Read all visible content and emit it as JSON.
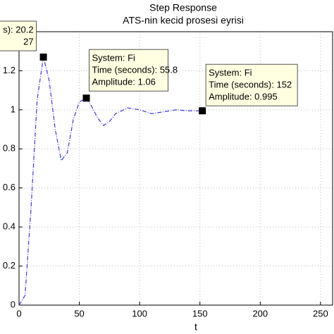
{
  "chart_data": {
    "type": "line",
    "title": "Step Response",
    "subtitle": "ATS-nin kecid prosesi eyrisi",
    "x_label": "t",
    "x": [
      0,
      5,
      10,
      15,
      20.2,
      25,
      30,
      35,
      40,
      45,
      50,
      55.8,
      60,
      65,
      70,
      75,
      80,
      90,
      100,
      110,
      120,
      130,
      140,
      152
    ],
    "series": [
      {
        "name": "Fi",
        "color": "#3b3bd6",
        "values": [
          0,
          0.05,
          0.5,
          1.05,
          1.27,
          1.15,
          0.9,
          0.74,
          0.78,
          0.95,
          1.04,
          1.06,
          1.02,
          0.96,
          0.92,
          0.94,
          0.98,
          1.01,
          1.0,
          0.98,
          0.99,
          1.0,
          0.995,
          0.995
        ]
      }
    ],
    "xlim": [
      0,
      260
    ],
    "xticks": [
      0,
      50,
      100,
      150,
      200,
      250
    ],
    "ylim": [
      0,
      1.4
    ],
    "yticks": [
      0,
      0.2,
      0.4,
      0.6,
      0.8,
      1,
      1.2
    ],
    "grid": true,
    "datatips": [
      {
        "x": 20.2,
        "y": 1.27,
        "lines": [
          "s): 20.2",
          "27"
        ]
      },
      {
        "x": 55.8,
        "y": 1.06,
        "lines": [
          "System: Fi",
          "Time (seconds): 55.8",
          "Amplitude: 1.06"
        ]
      },
      {
        "x": 152,
        "y": 0.995,
        "lines": [
          "System: Fi",
          "Time (seconds): 152",
          "Amplitude: 0.995"
        ]
      }
    ]
  }
}
